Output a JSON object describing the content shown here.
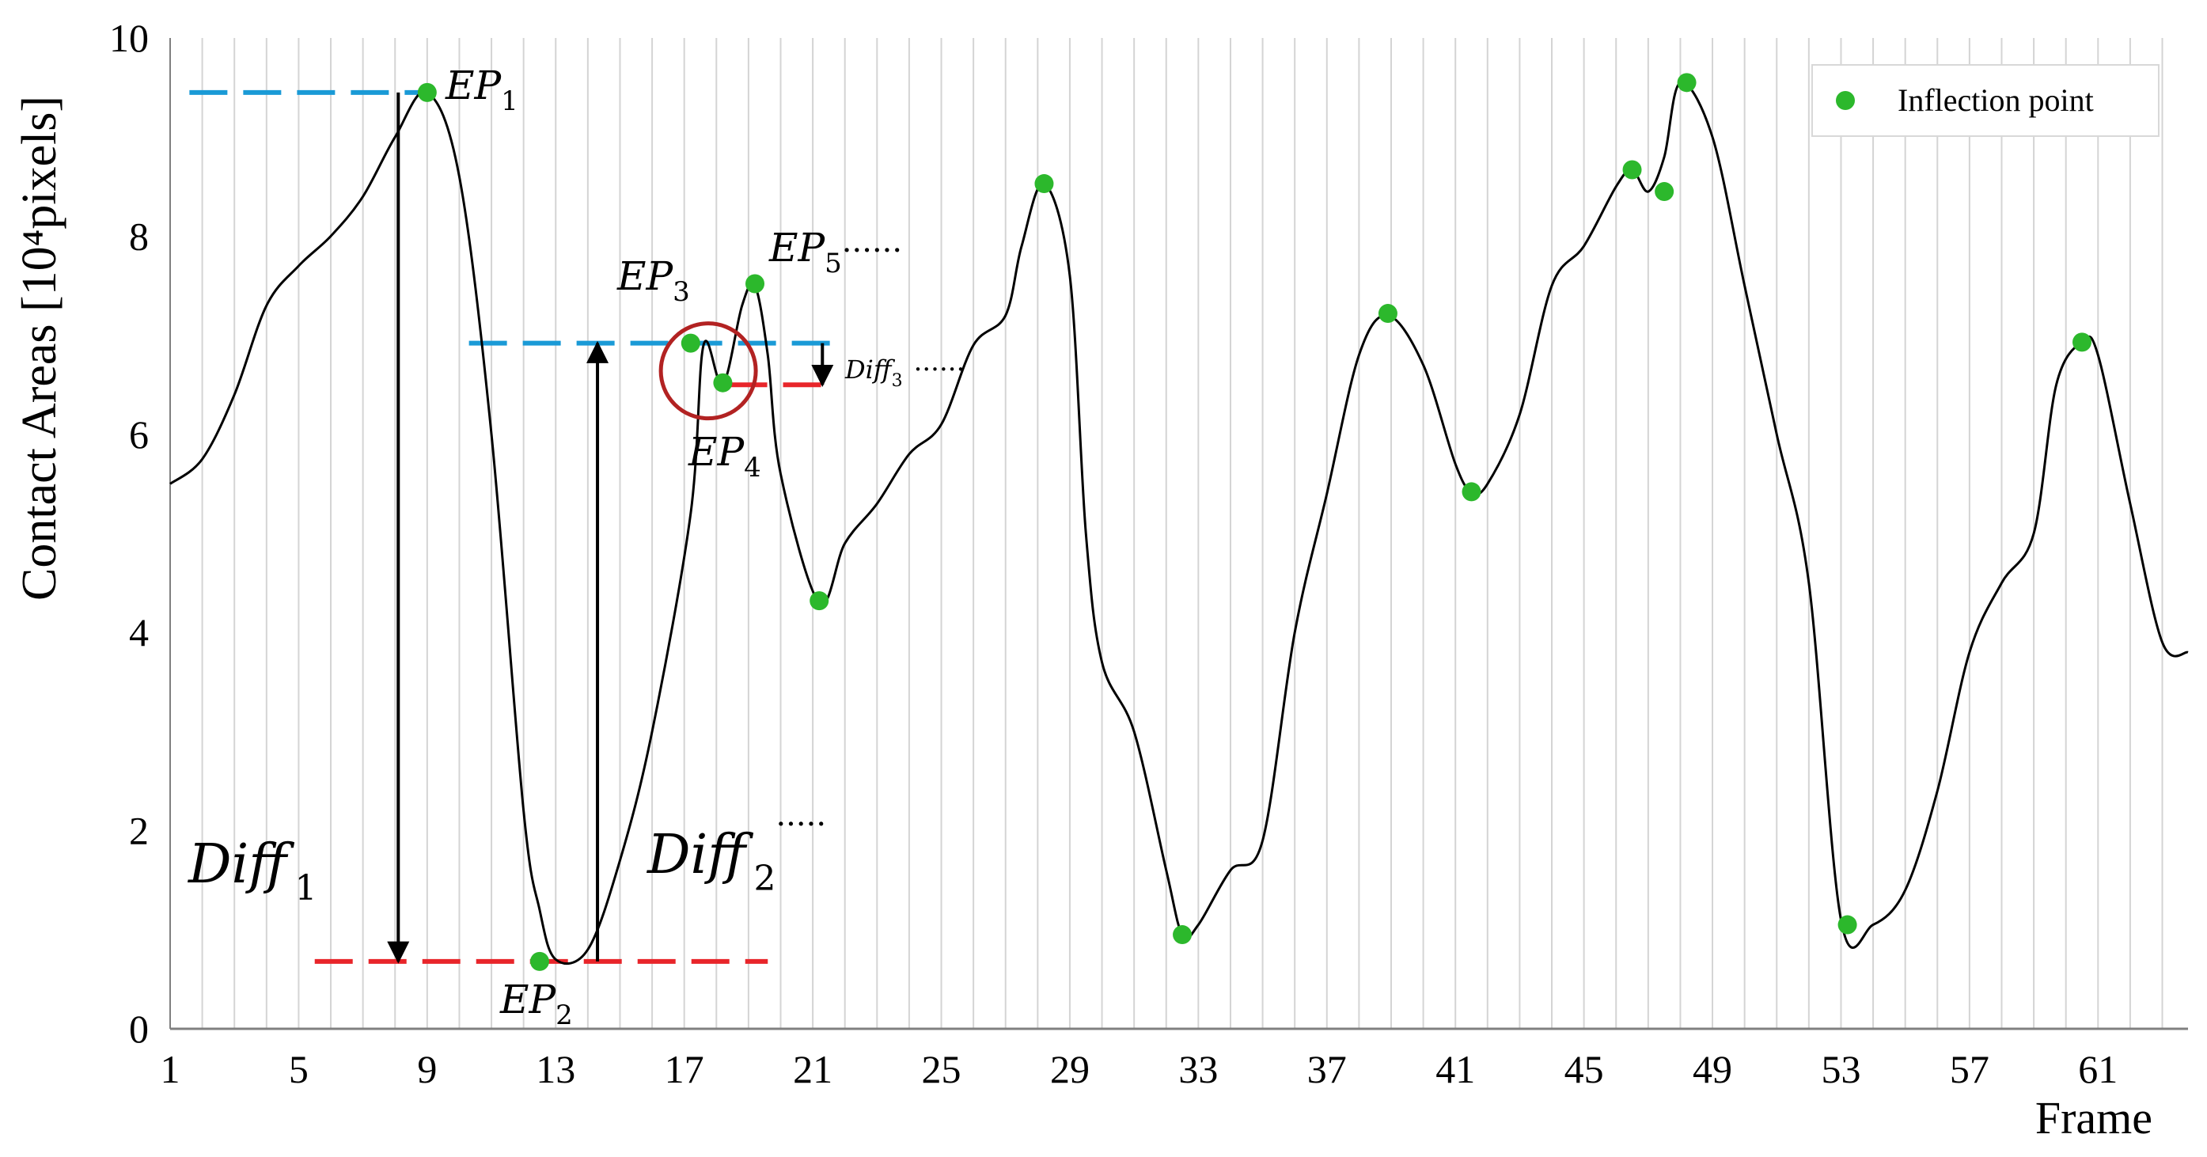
{
  "chart_data": {
    "type": "line",
    "xlabel": "Frame",
    "ylabel": "Contact Areas [10⁴pixels]",
    "xlim": [
      1,
      63.8
    ],
    "ylim": [
      0,
      10
    ],
    "x_ticks": [
      1,
      5,
      9,
      13,
      17,
      21,
      25,
      29,
      33,
      37,
      41,
      45,
      49,
      53,
      57,
      61
    ],
    "y_ticks": [
      0,
      2,
      4,
      6,
      8,
      10
    ],
    "grid": "vertical lines at every frame",
    "legend": {
      "placement": "top-right",
      "entries": [
        "Inflection point"
      ]
    },
    "colors": {
      "curve": "#000000",
      "points": "#2cb82c",
      "blue_dash": "#1a9ad6",
      "red_dash": "#e8252a",
      "circle": "#b22222",
      "grid": "#d4d4d4"
    },
    "curve": {
      "x": [
        1,
        2,
        3,
        4,
        5,
        6,
        7,
        8,
        9,
        10,
        11,
        12,
        12.5,
        13,
        14,
        15,
        16,
        17.2,
        17.6,
        18.2,
        18.8,
        19.2,
        19.6,
        20,
        21.2,
        22,
        23,
        24,
        25,
        26,
        27,
        27.5,
        28.2,
        29,
        29.5,
        30,
        31,
        32,
        32.5,
        33,
        34,
        35,
        36,
        37,
        38,
        38.9,
        40,
        41,
        41.5,
        42,
        43,
        44,
        45,
        46,
        46.5,
        47,
        47.5,
        48,
        49,
        50,
        51,
        52,
        53,
        54,
        55,
        56,
        57,
        58,
        59,
        59.7,
        60.5,
        61,
        62,
        63,
        63.8
      ],
      "y": [
        5.5,
        5.75,
        6.4,
        7.3,
        7.7,
        8.0,
        8.4,
        9.0,
        9.45,
        8.6,
        6.0,
        2.2,
        1.2,
        0.7,
        0.8,
        1.7,
        3.0,
        5.2,
        6.9,
        6.5,
        7.3,
        7.5,
        6.8,
        5.6,
        4.3,
        4.9,
        5.3,
        5.8,
        6.1,
        6.9,
        7.2,
        7.9,
        8.53,
        7.6,
        5.0,
        3.7,
        3.0,
        1.6,
        0.95,
        1.05,
        1.6,
        1.9,
        4.0,
        5.4,
        6.8,
        7.2,
        6.7,
        5.7,
        5.42,
        5.5,
        6.2,
        7.5,
        7.9,
        8.5,
        8.67,
        8.45,
        8.8,
        9.55,
        9.0,
        7.5,
        6.0,
        4.5,
        1.1,
        1.05,
        1.4,
        2.4,
        3.8,
        4.5,
        5.0,
        6.5,
        6.93,
        6.8,
        5.3,
        3.9,
        3.8
      ]
    },
    "inflection_points": {
      "x": [
        9,
        12.5,
        17.2,
        18.2,
        19.2,
        21.2,
        28.2,
        32.5,
        38.9,
        41.5,
        46.5,
        47.5,
        48.2,
        53.2,
        60.5
      ],
      "y": [
        9.45,
        0.68,
        6.92,
        6.52,
        7.52,
        4.32,
        8.53,
        0.95,
        7.22,
        5.42,
        8.67,
        8.45,
        9.55,
        1.05,
        6.93
      ]
    },
    "annotations": {
      "ep1": {
        "label": "EP",
        "sub": "1"
      },
      "ep2": {
        "label": "EP",
        "sub": "2"
      },
      "ep3": {
        "label": "EP",
        "sub": "3"
      },
      "ep4": {
        "label": "EP",
        "sub": "4"
      },
      "ep5": {
        "label": "EP",
        "sub": "5",
        "suffix": "······"
      },
      "diff1": {
        "label": "Diff",
        "sub": "1"
      },
      "diff2": {
        "label": "Diff",
        "sub": "2",
        "suffix": "·····"
      },
      "diff3": {
        "label": "Diff",
        "sub": "3",
        "suffix": "······"
      }
    },
    "reference_lines": {
      "blue_dash_1": {
        "y": 9.45,
        "x_range": [
          1.6,
          8.8
        ]
      },
      "blue_dash_2": {
        "y": 6.92,
        "x_range": [
          10.3,
          21.7
        ]
      },
      "red_dash_1": {
        "y": 0.68,
        "x_range": [
          5.5,
          19.6
        ]
      },
      "red_dash_2": {
        "y": 6.5,
        "x_range": [
          18.4,
          21.6
        ]
      }
    },
    "arrows": [
      {
        "name": "diff1-arrow",
        "x": 8.1,
        "from": 9.45,
        "to": 0.68
      },
      {
        "name": "diff2-arrow",
        "x": 14.3,
        "from": 0.68,
        "to": 6.92
      },
      {
        "name": "diff3-arrow",
        "x": 21.3,
        "from": 6.92,
        "to": 6.5
      }
    ]
  }
}
